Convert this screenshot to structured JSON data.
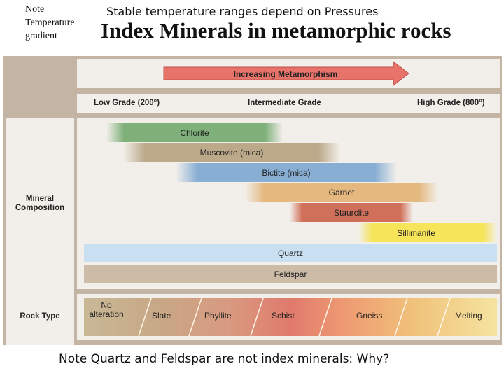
{
  "slide": {
    "note_topleft": "Note Temperature gradient",
    "subtitle": "Stable temperature ranges depend on Pressures",
    "title": "Index Minerals in metamorphic rocks",
    "footnote": "Note Quartz and Feldspar are not index minerals: Why?"
  },
  "diagram": {
    "arrow_label": "Increasing Metamorphism",
    "grades": {
      "low": "Low Grade (200°)",
      "intermediate": "Intermediate Grade",
      "high": "High Grade (800°)"
    },
    "mineral_label": "Mineral Composition",
    "rock_label": "Rock Type",
    "minerals": [
      {
        "name": "Chlorite",
        "color": "#7fb07a"
      },
      {
        "name": "Muscovite (mica)",
        "color": "#bba98a"
      },
      {
        "name": "Bictite (mica)",
        "color": "#88aed4"
      },
      {
        "name": "Garnet",
        "color": "#e4b87e"
      },
      {
        "name": "Staurclite",
        "color": "#d0705a"
      },
      {
        "name": "Sillimanite",
        "color": "#f6e45a"
      },
      {
        "name": "Quartz",
        "color": "#c8e0f2"
      },
      {
        "name": "Feldspar",
        "color": "#cbbba7"
      }
    ],
    "rock_types": [
      "No alteration",
      "Slate",
      "Phyllite",
      "Schist",
      "Gneiss",
      "Melting"
    ],
    "colors": {
      "arrow": "#e8736a",
      "frame": "#c4b4a4"
    }
  }
}
